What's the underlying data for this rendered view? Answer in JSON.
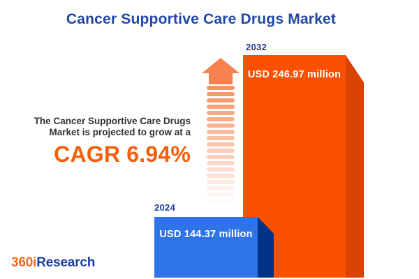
{
  "title": "Cancer Supportive Care Drugs Market",
  "annotation": {
    "line1": "The Cancer Supportive Care Drugs",
    "line2": "Market is projected to grow at a",
    "cagr": "CAGR 6.94%"
  },
  "bars": [
    {
      "year": "2024",
      "label": "USD 144.37 million"
    },
    {
      "year": "2032",
      "label": "USD 246.97 million"
    }
  ],
  "logo": {
    "part1": "360i",
    "part2": "Research"
  },
  "icons": {
    "growth_arrow": "up-arrow-striped"
  },
  "colors": {
    "title_blue": "#2147A6",
    "year_label_blue": "#1F3B99",
    "annotation_text": "#313131",
    "cagr_orange": "#F2600E",
    "bar_2024_front": "#2E73E8",
    "bar_2024_side": "#033389",
    "bar_2032_front": "#FB5000",
    "bar_2032_side": "#DB4303",
    "arrow_orange": "#F5824E",
    "logo_orange": "#F26A21",
    "logo_blue": "#1F3FA0",
    "background": "#FFFFFF"
  },
  "chart_data": {
    "type": "bar",
    "categories": [
      "2024",
      "2032"
    ],
    "values": [
      144.37,
      246.97
    ],
    "value_unit": "USD million",
    "value_labels": [
      "USD 144.37 million",
      "USD 246.97 million"
    ],
    "series": [
      {
        "name": "Cancer Supportive Care Drugs Market size",
        "values": [
          144.37,
          246.97
        ]
      }
    ],
    "title": "Cancer Supportive Care Drugs Market",
    "xlabel": "",
    "ylabel": "",
    "legend": false,
    "grid": false,
    "annotations": [
      "The Cancer Supportive Care Drugs Market is projected to grow at a CAGR 6.94%"
    ],
    "cagr_percent": 6.94,
    "bar_colors": [
      "#2E73E8",
      "#FB5000"
    ]
  }
}
